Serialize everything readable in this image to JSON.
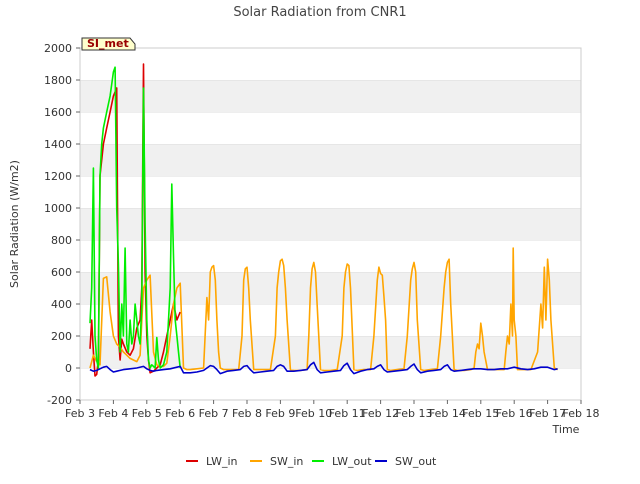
{
  "chart_data": {
    "type": "line",
    "title": "Solar Radiation from CNR1",
    "xlabel": "Time",
    "ylabel": "Solar Radiation (W/m2)",
    "station_label": "SI_met",
    "xlim": [
      3.0,
      18.0
    ],
    "ylim": [
      -200,
      2000
    ],
    "x_ticks": [
      3,
      4,
      5,
      6,
      7,
      8,
      9,
      10,
      11,
      12,
      13,
      14,
      15,
      16,
      17,
      18
    ],
    "x_tick_labels": [
      "Feb 3",
      "Feb 4",
      "Feb 5",
      "Feb 6",
      "Feb 7",
      "Feb 8",
      "Feb 9",
      "Feb 10",
      "Feb 11",
      "Feb 12",
      "Feb 13",
      "Feb 14",
      "Feb 15",
      "Feb 16",
      "Feb 17",
      "Feb 18"
    ],
    "y_ticks": [
      -200,
      0,
      200,
      400,
      600,
      800,
      1000,
      1200,
      1400,
      1600,
      1800,
      2000
    ],
    "y_tick_labels": [
      "-200",
      "0",
      "200",
      "400",
      "600",
      "800",
      "1000",
      "1200",
      "1400",
      "1600",
      "1800",
      "2000"
    ],
    "grid": "horizontal bands",
    "legend_position": "bottom",
    "series": [
      {
        "name": "LW_in",
        "color": "#dd0000",
        "x": [
          3.3,
          3.35,
          3.4,
          3.45,
          3.5,
          3.55,
          3.6,
          3.65,
          3.7,
          3.8,
          3.9,
          4.0,
          4.1,
          4.15,
          4.2,
          4.25,
          4.3,
          4.4,
          4.5,
          4.6,
          4.7,
          4.8,
          4.85,
          4.9,
          4.95,
          5.0,
          5.05,
          5.1,
          5.2,
          5.3,
          5.4,
          5.5,
          5.6,
          5.7,
          5.8,
          5.9,
          6.0
        ],
        "y": [
          120,
          300,
          100,
          -50,
          -40,
          50,
          1200,
          1300,
          1400,
          1500,
          1600,
          1700,
          1750,
          200,
          50,
          180,
          150,
          100,
          80,
          120,
          250,
          300,
          500,
          1900,
          600,
          200,
          50,
          -30,
          -20,
          0,
          20,
          100,
          200,
          300,
          400,
          300,
          350
        ]
      },
      {
        "name": "SW_in",
        "color": "#ffa500",
        "x": [
          3.3,
          3.4,
          3.5,
          3.6,
          3.7,
          3.8,
          3.9,
          4.0,
          4.1,
          4.2,
          4.3,
          4.4,
          4.5,
          4.6,
          4.7,
          4.8,
          4.9,
          5.0,
          5.1,
          5.2,
          5.3,
          5.4,
          5.5,
          5.6,
          5.7,
          5.8,
          5.9,
          6.0,
          6.1,
          6.2,
          6.3,
          6.5,
          6.7,
          6.8,
          6.85,
          6.9,
          6.95,
          7.0,
          7.05,
          7.1,
          7.15,
          7.2,
          7.3,
          7.4,
          7.6,
          7.75,
          7.85,
          7.9,
          7.95,
          8.0,
          8.05,
          8.1,
          8.2,
          8.3,
          8.5,
          8.7,
          8.85,
          8.9,
          8.95,
          9.0,
          9.05,
          9.1,
          9.15,
          9.2,
          9.3,
          9.4,
          9.6,
          9.8,
          9.85,
          9.9,
          9.95,
          10.0,
          10.05,
          10.1,
          10.2,
          10.3,
          10.5,
          10.7,
          10.85,
          10.9,
          10.95,
          11.0,
          11.05,
          11.1,
          11.2,
          11.3,
          11.5,
          11.7,
          11.8,
          11.9,
          11.95,
          12.0,
          12.05,
          12.1,
          12.15,
          12.2,
          12.3,
          12.5,
          12.7,
          12.8,
          12.9,
          12.95,
          13.0,
          13.05,
          13.1,
          13.2,
          13.3,
          13.5,
          13.7,
          13.8,
          13.9,
          13.95,
          14.0,
          14.05,
          14.1,
          14.2,
          14.3,
          14.5,
          14.7,
          14.8,
          14.85,
          14.9,
          14.95,
          15.0,
          15.05,
          15.1,
          15.2,
          15.4,
          15.6,
          15.7,
          15.75,
          15.8,
          15.85,
          15.9,
          15.95,
          15.97,
          16.0,
          16.05,
          16.1,
          16.2,
          16.3,
          16.5,
          16.7,
          16.8,
          16.85,
          16.9,
          16.95,
          17.0,
          17.05,
          17.1,
          17.2,
          17.3
        ],
        "y": [
          0,
          80,
          40,
          20,
          560,
          570,
          350,
          200,
          150,
          130,
          100,
          80,
          60,
          50,
          40,
          80,
          500,
          550,
          580,
          100,
          20,
          10,
          10,
          30,
          200,
          400,
          500,
          530,
          0,
          -10,
          -10,
          -5,
          0,
          440,
          300,
          600,
          630,
          640,
          550,
          300,
          100,
          0,
          -10,
          -10,
          -10,
          -10,
          200,
          550,
          620,
          630,
          500,
          300,
          -10,
          -10,
          -10,
          -10,
          200,
          500,
          600,
          670,
          680,
          640,
          500,
          300,
          -10,
          -15,
          -15,
          -10,
          200,
          500,
          620,
          660,
          600,
          400,
          -10,
          -15,
          -15,
          -10,
          200,
          500,
          600,
          650,
          640,
          500,
          -10,
          -15,
          -10,
          -10,
          200,
          550,
          630,
          590,
          580,
          450,
          300,
          -10,
          -15,
          -10,
          -5,
          200,
          550,
          620,
          660,
          600,
          300,
          -10,
          -15,
          -10,
          -5,
          200,
          500,
          600,
          660,
          680,
          400,
          -10,
          -15,
          -15,
          -10,
          0,
          100,
          150,
          120,
          280,
          200,
          100,
          -10,
          -10,
          -10,
          -10,
          100,
          200,
          150,
          400,
          200,
          750,
          300,
          200,
          -10,
          -10,
          -10,
          -10,
          100,
          400,
          250,
          630,
          300,
          680,
          550,
          300,
          0,
          -10
        ]
      },
      {
        "name": "LW_out",
        "color": "#00ee00",
        "x": [
          3.3,
          3.35,
          3.4,
          3.45,
          3.5,
          3.55,
          3.6,
          3.65,
          3.7,
          3.8,
          3.9,
          4.0,
          4.05,
          4.1,
          4.15,
          4.2,
          4.25,
          4.3,
          4.35,
          4.4,
          4.45,
          4.5,
          4.55,
          4.6,
          4.65,
          4.7,
          4.75,
          4.8,
          4.85,
          4.9,
          4.95,
          5.0,
          5.05,
          5.1,
          5.15,
          5.2,
          5.25,
          5.3,
          5.35,
          5.4,
          5.5,
          5.6,
          5.65,
          5.7,
          5.75,
          5.8,
          5.85,
          5.9,
          5.95,
          6.0
        ],
        "y": [
          280,
          500,
          1250,
          200,
          50,
          0,
          1200,
          1400,
          1500,
          1600,
          1700,
          1850,
          1880,
          1000,
          650,
          100,
          400,
          200,
          750,
          150,
          100,
          300,
          150,
          200,
          400,
          300,
          200,
          150,
          400,
          1750,
          900,
          300,
          50,
          0,
          20,
          10,
          0,
          190,
          50,
          0,
          20,
          100,
          300,
          500,
          1150,
          700,
          300,
          200,
          100,
          0
        ]
      },
      {
        "name": "SW_out",
        "color": "#0000cc",
        "x": [
          3.3,
          3.4,
          3.5,
          3.6,
          3.7,
          3.8,
          3.9,
          4.0,
          4.1,
          4.2,
          4.3,
          4.5,
          4.7,
          4.9,
          5.0,
          5.1,
          5.2,
          5.3,
          5.5,
          5.7,
          5.9,
          6.0,
          6.1,
          6.3,
          6.5,
          6.7,
          6.9,
          7.0,
          7.1,
          7.2,
          7.4,
          7.6,
          7.8,
          7.9,
          8.0,
          8.1,
          8.2,
          8.4,
          8.6,
          8.8,
          8.9,
          9.0,
          9.1,
          9.2,
          9.4,
          9.6,
          9.8,
          9.9,
          10.0,
          10.1,
          10.2,
          10.4,
          10.6,
          10.8,
          10.9,
          11.0,
          11.1,
          11.2,
          11.4,
          11.6,
          11.8,
          11.9,
          12.0,
          12.1,
          12.2,
          12.4,
          12.6,
          12.8,
          12.9,
          13.0,
          13.1,
          13.2,
          13.4,
          13.6,
          13.8,
          13.9,
          14.0,
          14.1,
          14.2,
          14.4,
          14.6,
          14.8,
          15.0,
          15.2,
          15.4,
          15.6,
          15.8,
          16.0,
          16.2,
          16.4,
          16.6,
          16.8,
          17.0,
          17.2,
          17.3
        ],
        "y": [
          -10,
          -20,
          -15,
          -5,
          5,
          10,
          -10,
          -25,
          -20,
          -15,
          -10,
          -5,
          0,
          10,
          -5,
          -15,
          -20,
          -15,
          -10,
          -5,
          5,
          10,
          -30,
          -30,
          -25,
          -15,
          15,
          10,
          -10,
          -35,
          -20,
          -15,
          -10,
          10,
          15,
          -10,
          -30,
          -25,
          -20,
          -15,
          10,
          20,
          10,
          -20,
          -20,
          -15,
          -10,
          20,
          35,
          -10,
          -30,
          -25,
          -20,
          -15,
          15,
          30,
          -10,
          -35,
          -20,
          -10,
          -5,
          10,
          20,
          -10,
          -25,
          -20,
          -15,
          -10,
          10,
          25,
          -10,
          -30,
          -20,
          -15,
          -10,
          10,
          20,
          -10,
          -20,
          -15,
          -10,
          -5,
          -5,
          -10,
          -10,
          -5,
          -5,
          5,
          -5,
          -10,
          -5,
          5,
          5,
          -10,
          -5
        ]
      }
    ]
  }
}
